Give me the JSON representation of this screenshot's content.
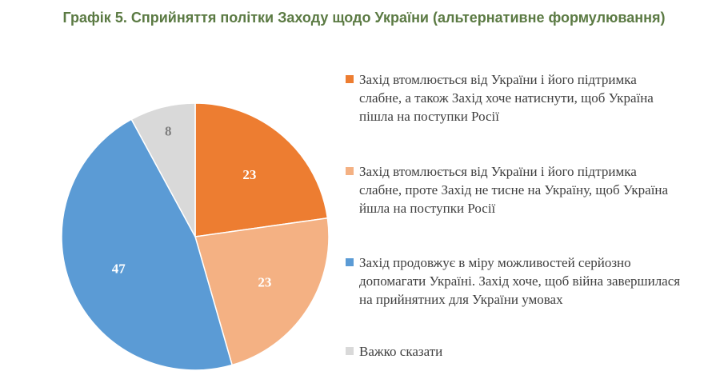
{
  "chart_data": {
    "type": "pie",
    "title": "Графік 5. Сприйняття політки Заходу щодо України (альтернативне формулювання)",
    "slices": [
      {
        "label": "Захід втомлюється від України і його підтримка слабне, а також Захід хоче натиснути, щоб Україна пішла на поступки Росії",
        "value": 23,
        "value_label": "23",
        "color": "#ed7d31"
      },
      {
        "label": "Захід втомлюється від України і його підтримка слабне, проте Захід не тисне на Україну, щоб Україна йшла на поступки Росії",
        "value": 23,
        "value_label": "23",
        "color": "#f4b183"
      },
      {
        "label": "Захід продовжує в міру можливостей серйозно допомагати Україні. Захід хоче, щоб війна завершилася на прийнятних для України умовах",
        "value": 47,
        "value_label": "47",
        "color": "#5b9bd5"
      },
      {
        "label": "Важко сказати",
        "value": 8,
        "value_label": "8",
        "color": "#d9d9d9"
      }
    ],
    "legend_position": "right"
  }
}
